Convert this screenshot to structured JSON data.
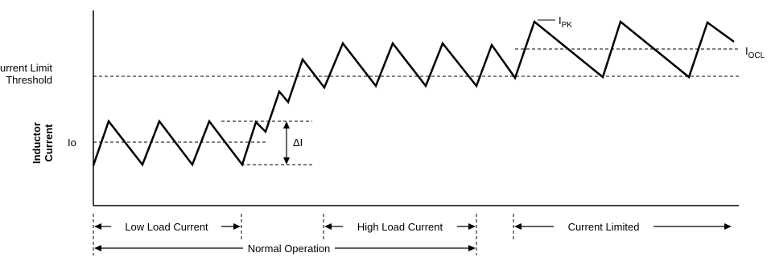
{
  "labels": {
    "current_limit_line1": "Current Limit",
    "current_limit_line2": "Threshold",
    "io": "Io",
    "y_axis_line1": "Inductor",
    "y_axis_line2": "Current",
    "delta_i": "ΔI",
    "ipk_main": "I",
    "ipk_sub": "PK",
    "iocl_main": "I",
    "iocl_sub": "OCL"
  },
  "regions": {
    "low_load": "Low Load Current",
    "high_load": "High Load Current",
    "current_limited": "Current Limited",
    "normal_operation": "Normal Operation"
  },
  "colors": {
    "stroke": "#000000",
    "background": "#ffffff"
  }
}
